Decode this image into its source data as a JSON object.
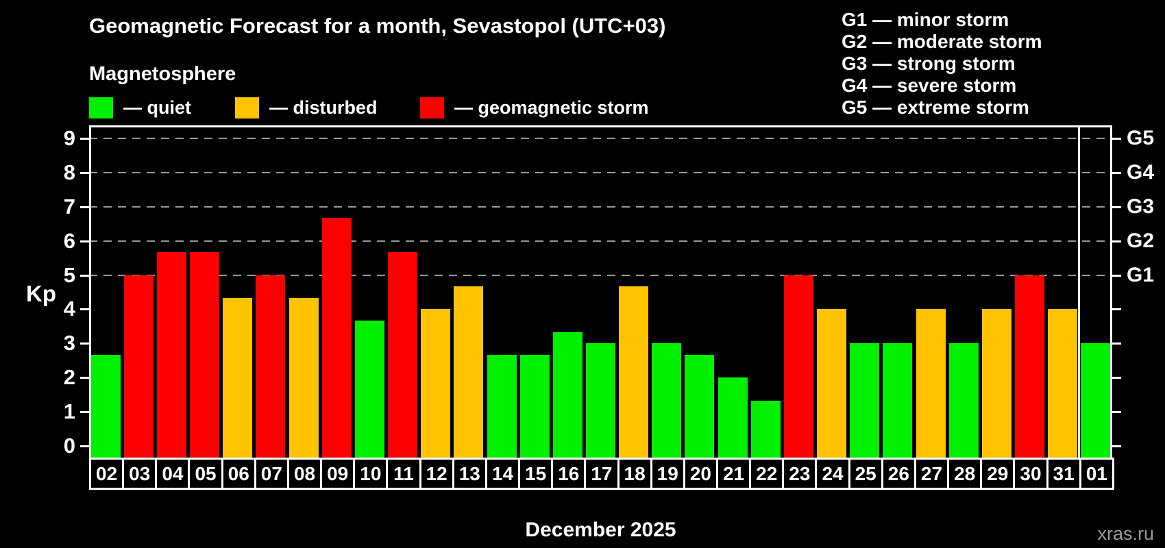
{
  "title": "Geomagnetic Forecast for a month, Sevastopol (UTC+03)",
  "subtitle": "Magnetosphere",
  "legend": {
    "items": [
      {
        "key": "quiet",
        "label": "— quiet",
        "color": "#00f000"
      },
      {
        "key": "disturbed",
        "label": "— disturbed",
        "color": "#ffc300"
      },
      {
        "key": "storm",
        "label": "— geomagnetic storm",
        "color": "#ff0000"
      }
    ]
  },
  "g_scale_legend": {
    "lines": [
      "G1 — minor storm",
      "G2 — moderate storm",
      "G3 — strong storm",
      "G4 — severe storm",
      "G5 — extreme storm"
    ]
  },
  "watermark": "xras.ru",
  "chart_data": {
    "type": "bar",
    "title": "Geomagnetic Forecast for a month, Sevastopol (UTC+03)",
    "subtitle": "Magnetosphere",
    "ylabel": "Kp",
    "xlabel": "December 2025",
    "ylim": [
      -0.34,
      9.38
    ],
    "yticks": [
      0,
      1,
      2,
      3,
      4,
      5,
      6,
      7,
      8,
      9
    ],
    "grid": "dashed gray horizontal lines at Kp 5-9 only",
    "grid_levels": [
      5,
      6,
      7,
      8,
      9
    ],
    "right_axis_labels": [
      {
        "label": "G1",
        "kp": 5
      },
      {
        "label": "G2",
        "kp": 6
      },
      {
        "label": "G3",
        "kp": 7
      },
      {
        "label": "G4",
        "kp": 8
      },
      {
        "label": "G5",
        "kp": 9
      }
    ],
    "categories": [
      "02",
      "03",
      "04",
      "05",
      "06",
      "07",
      "08",
      "09",
      "10",
      "11",
      "12",
      "13",
      "14",
      "15",
      "16",
      "17",
      "18",
      "19",
      "20",
      "21",
      "22",
      "23",
      "24",
      "25",
      "26",
      "27",
      "28",
      "29",
      "30",
      "31",
      "01"
    ],
    "values": [
      2.67,
      5,
      5.67,
      5.67,
      4.33,
      5,
      4.33,
      6.67,
      3.67,
      5.67,
      4,
      4.67,
      2.67,
      2.67,
      3.33,
      3,
      4.67,
      3,
      2.67,
      2,
      1.33,
      5,
      4,
      3,
      3,
      4,
      3,
      4,
      5,
      4,
      3
    ],
    "conditions": [
      "quiet",
      "storm",
      "storm",
      "storm",
      "disturbed",
      "storm",
      "disturbed",
      "storm",
      "quiet",
      "storm",
      "disturbed",
      "disturbed",
      "quiet",
      "quiet",
      "quiet",
      "quiet",
      "disturbed",
      "quiet",
      "quiet",
      "quiet",
      "quiet",
      "storm",
      "disturbed",
      "quiet",
      "quiet",
      "disturbed",
      "quiet",
      "disturbed",
      "storm",
      "disturbed",
      "quiet"
    ],
    "colors": {
      "quiet": "#00f000",
      "disturbed": "#ffc300",
      "storm": "#ff0000"
    },
    "divider_after_index": 29,
    "legend_position": "top-left",
    "background": "#000000"
  }
}
